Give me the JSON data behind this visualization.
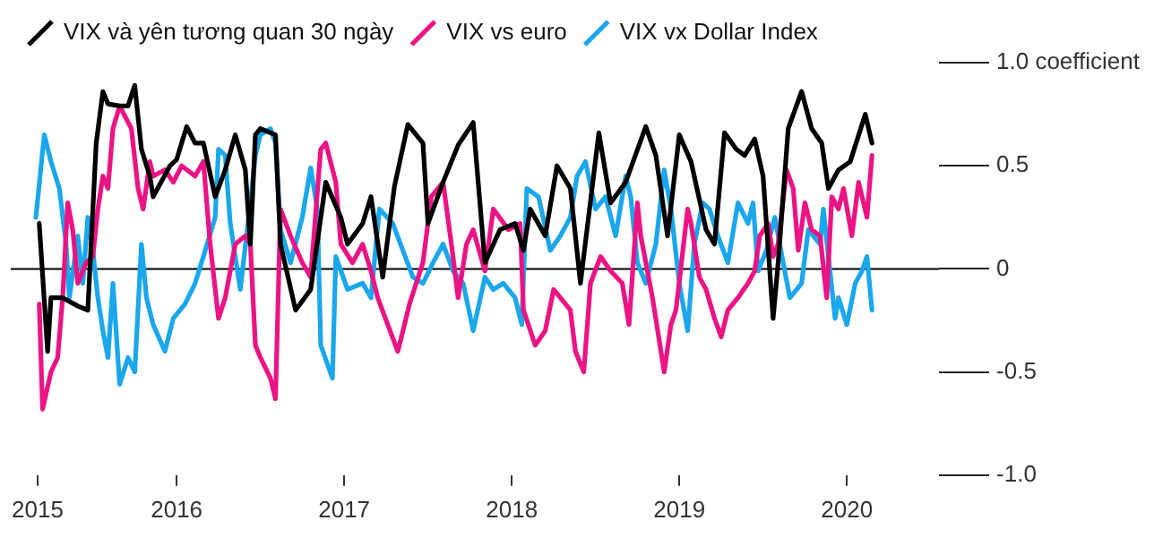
{
  "chart_data": {
    "type": "line",
    "legend": "top left",
    "marker": "none",
    "line_style": "solid",
    "xlim": [
      2015.01,
      2020.55
    ],
    "xticks": [
      {
        "value": 2015.17,
        "label": "2015"
      },
      2016,
      2017,
      2018,
      2019,
      2020
    ],
    "ylim": [
      -1,
      1
    ],
    "yticks": [
      {
        "value": -1,
        "label": "-1.0"
      },
      -0.5,
      0,
      0.5,
      {
        "value": 1,
        "label": "1.0 coefficient"
      }
    ],
    "ref_lines": [
      {
        "axis": "y",
        "value": 0,
        "color": "#000000"
      }
    ],
    "series": [
      {
        "name": "VIX và yên tương quan 30 ngày",
        "color": "#000000",
        "x": [
          2015.18,
          2015.23,
          2015.25,
          2015.32,
          2015.41,
          2015.47,
          2015.52,
          2015.56,
          2015.59,
          2015.66,
          2015.71,
          2015.75,
          2015.79,
          2015.84,
          2015.86,
          2015.96,
          2016.0,
          2016.06,
          2016.11,
          2016.16,
          2016.23,
          2016.29,
          2016.35,
          2016.41,
          2016.44,
          2016.47,
          2016.5,
          2016.59,
          2016.62,
          2016.71,
          2016.8,
          2016.89,
          2016.98,
          2017.02,
          2017.11,
          2017.16,
          2017.23,
          2017.3,
          2017.38,
          2017.47,
          2017.5,
          2017.59,
          2017.68,
          2017.77,
          2017.84,
          2017.93,
          2018.02,
          2018.07,
          2018.11,
          2018.2,
          2018.27,
          2018.35,
          2018.41,
          2018.52,
          2018.59,
          2018.68,
          2018.8,
          2018.86,
          2018.93,
          2019.0,
          2019.07,
          2019.16,
          2019.21,
          2019.27,
          2019.34,
          2019.39,
          2019.45,
          2019.5,
          2019.56,
          2019.59,
          2019.65,
          2019.73,
          2019.79,
          2019.85,
          2019.89,
          2019.95,
          2020.02,
          2020.11,
          2020.15
        ],
        "values": [
          0.22,
          -0.4,
          -0.14,
          -0.14,
          -0.18,
          -0.2,
          0.61,
          0.86,
          0.8,
          0.79,
          0.79,
          0.89,
          0.58,
          0.45,
          0.35,
          0.5,
          0.53,
          0.69,
          0.61,
          0.61,
          0.35,
          0.48,
          0.65,
          0.48,
          0.12,
          0.65,
          0.68,
          0.65,
          0.12,
          -0.2,
          -0.1,
          0.42,
          0.25,
          0.12,
          0.22,
          0.35,
          -0.04,
          0.4,
          0.7,
          0.61,
          0.22,
          0.42,
          0.6,
          0.71,
          0.03,
          0.19,
          0.22,
          0.09,
          0.29,
          0.16,
          0.5,
          0.39,
          -0.07,
          0.66,
          0.32,
          0.42,
          0.69,
          0.55,
          0.16,
          0.65,
          0.52,
          0.19,
          0.12,
          0.66,
          0.58,
          0.55,
          0.63,
          0.45,
          -0.24,
          0.03,
          0.68,
          0.86,
          0.68,
          0.61,
          0.39,
          0.48,
          0.52,
          0.75,
          0.61
        ]
      },
      {
        "name": "VIX vs euro",
        "color": "#ec1384",
        "x": [
          2015.18,
          2015.2,
          2015.25,
          2015.29,
          2015.32,
          2015.35,
          2015.38,
          2015.41,
          2015.46,
          2015.5,
          2015.53,
          2015.56,
          2015.59,
          2015.62,
          2015.66,
          2015.73,
          2015.77,
          2015.8,
          2015.84,
          2015.86,
          2015.93,
          2015.98,
          2016.03,
          2016.11,
          2016.16,
          2016.2,
          2016.25,
          2016.29,
          2016.35,
          2016.41,
          2016.44,
          2016.47,
          2016.5,
          2016.56,
          2016.59,
          2016.62,
          2016.68,
          2016.75,
          2016.8,
          2016.86,
          2016.89,
          2016.95,
          2016.98,
          2017.05,
          2017.11,
          2017.16,
          2017.2,
          2017.26,
          2017.32,
          2017.36,
          2017.39,
          2017.47,
          2017.52,
          2017.59,
          2017.64,
          2017.68,
          2017.73,
          2017.77,
          2017.84,
          2017.89,
          2017.98,
          2018.05,
          2018.07,
          2018.14,
          2018.2,
          2018.25,
          2018.35,
          2018.38,
          2018.43,
          2018.47,
          2018.53,
          2018.59,
          2018.66,
          2018.7,
          2018.75,
          2018.77,
          2018.84,
          2018.91,
          2018.95,
          2018.98,
          2019.05,
          2019.07,
          2019.12,
          2019.16,
          2019.21,
          2019.25,
          2019.29,
          2019.35,
          2019.41,
          2019.45,
          2019.48,
          2019.53,
          2019.56,
          2019.59,
          2019.64,
          2019.68,
          2019.71,
          2019.75,
          2019.79,
          2019.84,
          2019.88,
          2019.91,
          2019.95,
          2019.98,
          2020.03,
          2020.07,
          2020.12,
          2020.15
        ],
        "values": [
          -0.17,
          -0.68,
          -0.5,
          -0.43,
          -0.14,
          0.32,
          0.19,
          -0.07,
          0.03,
          0.06,
          0.29,
          0.45,
          0.39,
          0.68,
          0.79,
          0.68,
          0.39,
          0.29,
          0.52,
          0.45,
          0.48,
          0.42,
          0.5,
          0.45,
          0.52,
          0.12,
          -0.24,
          -0.14,
          0.12,
          0.16,
          0.12,
          -0.37,
          -0.43,
          -0.53,
          -0.63,
          0.29,
          0.16,
          0.03,
          -0.04,
          0.58,
          0.61,
          0.42,
          0.12,
          0.03,
          0.12,
          -0.01,
          -0.14,
          -0.27,
          -0.4,
          -0.27,
          -0.17,
          0.03,
          0.35,
          0.42,
          0.12,
          -0.14,
          0.12,
          0.19,
          -0.01,
          0.29,
          0.19,
          0.22,
          -0.2,
          -0.37,
          -0.3,
          -0.1,
          -0.2,
          -0.4,
          -0.5,
          -0.07,
          0.06,
          -0.01,
          -0.07,
          -0.27,
          0.32,
          0.16,
          -0.14,
          -0.5,
          -0.27,
          -0.2,
          0.29,
          0.22,
          -0.04,
          -0.1,
          -0.24,
          -0.33,
          -0.2,
          -0.14,
          -0.07,
          -0.01,
          0.16,
          0.22,
          0.06,
          0.12,
          0.48,
          0.39,
          0.09,
          0.32,
          0.19,
          0.16,
          -0.14,
          0.35,
          0.29,
          0.39,
          0.16,
          0.42,
          0.25,
          0.55
        ]
      },
      {
        "name": "VIX vx Dollar Index",
        "color": "#1aa7ec",
        "x": [
          2015.16,
          2015.21,
          2015.25,
          2015.3,
          2015.34,
          2015.36,
          2015.41,
          2015.44,
          2015.47,
          2015.5,
          2015.53,
          2015.56,
          2015.59,
          2015.62,
          2015.66,
          2015.71,
          2015.75,
          2015.79,
          2015.82,
          2015.86,
          2015.93,
          2015.98,
          2016.05,
          2016.11,
          2016.16,
          2016.23,
          2016.25,
          2016.29,
          2016.32,
          2016.38,
          2016.44,
          2016.47,
          2016.5,
          2016.56,
          2016.59,
          2016.62,
          2016.68,
          2016.75,
          2016.8,
          2016.84,
          2016.86,
          2016.93,
          2016.95,
          2017.02,
          2017.11,
          2017.16,
          2017.21,
          2017.29,
          2017.35,
          2017.41,
          2017.47,
          2017.53,
          2017.59,
          2017.65,
          2017.71,
          2017.77,
          2017.84,
          2017.89,
          2017.95,
          2018.02,
          2018.06,
          2018.09,
          2018.16,
          2018.23,
          2018.29,
          2018.35,
          2018.39,
          2018.44,
          2018.5,
          2018.56,
          2018.62,
          2018.68,
          2018.71,
          2018.75,
          2018.8,
          2018.86,
          2018.91,
          2018.95,
          2019.0,
          2019.05,
          2019.09,
          2019.14,
          2019.18,
          2019.23,
          2019.29,
          2019.35,
          2019.41,
          2019.44,
          2019.47,
          2019.52,
          2019.57,
          2019.62,
          2019.66,
          2019.73,
          2019.77,
          2019.84,
          2019.86,
          2019.89,
          2019.93,
          2019.95,
          2020.0,
          2020.05,
          2020.09,
          2020.12,
          2020.15
        ],
        "values": [
          0.25,
          0.65,
          0.52,
          0.39,
          0.12,
          -0.14,
          0.16,
          -0.07,
          0.25,
          0.09,
          -0.14,
          -0.3,
          -0.43,
          -0.07,
          -0.56,
          -0.43,
          -0.5,
          0.12,
          -0.14,
          -0.27,
          -0.4,
          -0.24,
          -0.17,
          -0.07,
          0.06,
          0.25,
          0.58,
          0.55,
          0.22,
          -0.1,
          0.32,
          0.55,
          0.65,
          0.68,
          0.61,
          0.19,
          0.03,
          0.25,
          0.49,
          0.29,
          -0.37,
          -0.53,
          0.06,
          -0.1,
          -0.07,
          -0.14,
          0.29,
          0.22,
          0.09,
          -0.04,
          -0.07,
          0.03,
          0.12,
          -0.01,
          -0.07,
          -0.3,
          -0.04,
          -0.1,
          -0.07,
          -0.14,
          -0.27,
          0.39,
          0.35,
          0.09,
          0.16,
          0.25,
          0.45,
          0.52,
          0.29,
          0.35,
          0.16,
          0.45,
          0.35,
          0.03,
          -0.07,
          0.12,
          0.48,
          0.29,
          -0.07,
          -0.3,
          0.12,
          0.32,
          0.29,
          0.16,
          0.03,
          0.32,
          0.22,
          0.32,
          -0.01,
          0.09,
          0.25,
          0.03,
          -0.14,
          -0.07,
          0.19,
          0.12,
          0.29,
          0.06,
          -0.24,
          -0.14,
          -0.27,
          -0.07,
          -0.01,
          0.06,
          -0.2
        ]
      }
    ]
  }
}
